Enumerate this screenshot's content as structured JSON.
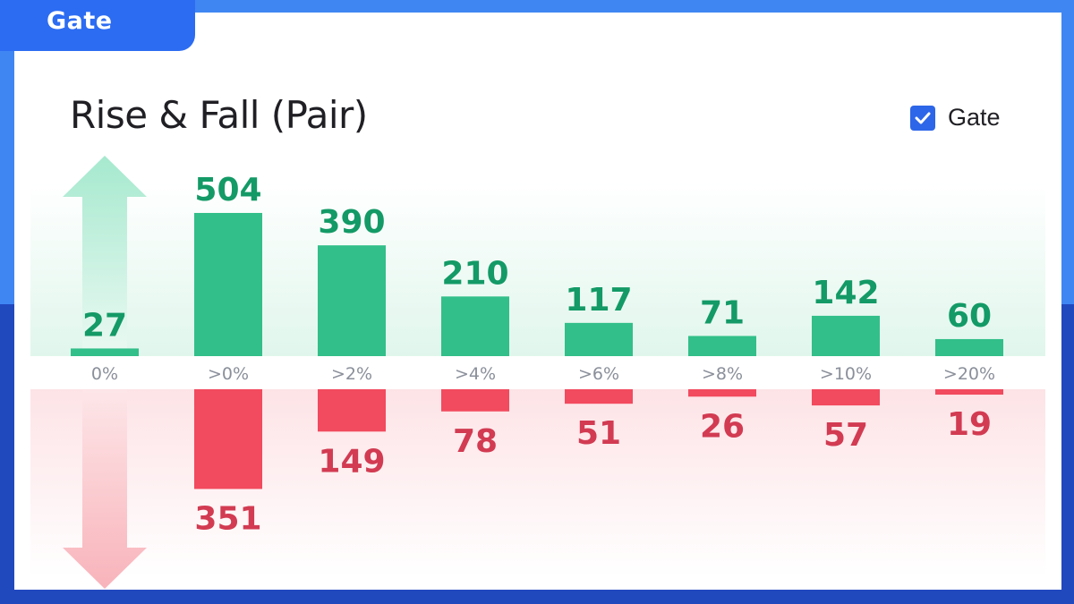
{
  "brand": {
    "logo_text": "Gate"
  },
  "chart_data": {
    "type": "bar",
    "title": "Rise & Fall (Pair)",
    "categories": [
      "0%",
      ">0%",
      ">2%",
      ">4%",
      ">6%",
      ">8%",
      ">10%",
      ">20%"
    ],
    "series": [
      {
        "name": "Gate",
        "values": [
          27,
          504,
          390,
          210,
          117,
          71,
          142,
          60
        ]
      },
      {
        "values": [
          0,
          351,
          149,
          78,
          51,
          26,
          57,
          19
        ]
      }
    ],
    "legend": {
      "position": "top-right"
    },
    "colors": {
      "rise": "#32bf89",
      "fall": "#f24a5e",
      "rise_text": "#139a66",
      "fall_text": "#d23b52",
      "legend": "#2d66e8"
    }
  }
}
